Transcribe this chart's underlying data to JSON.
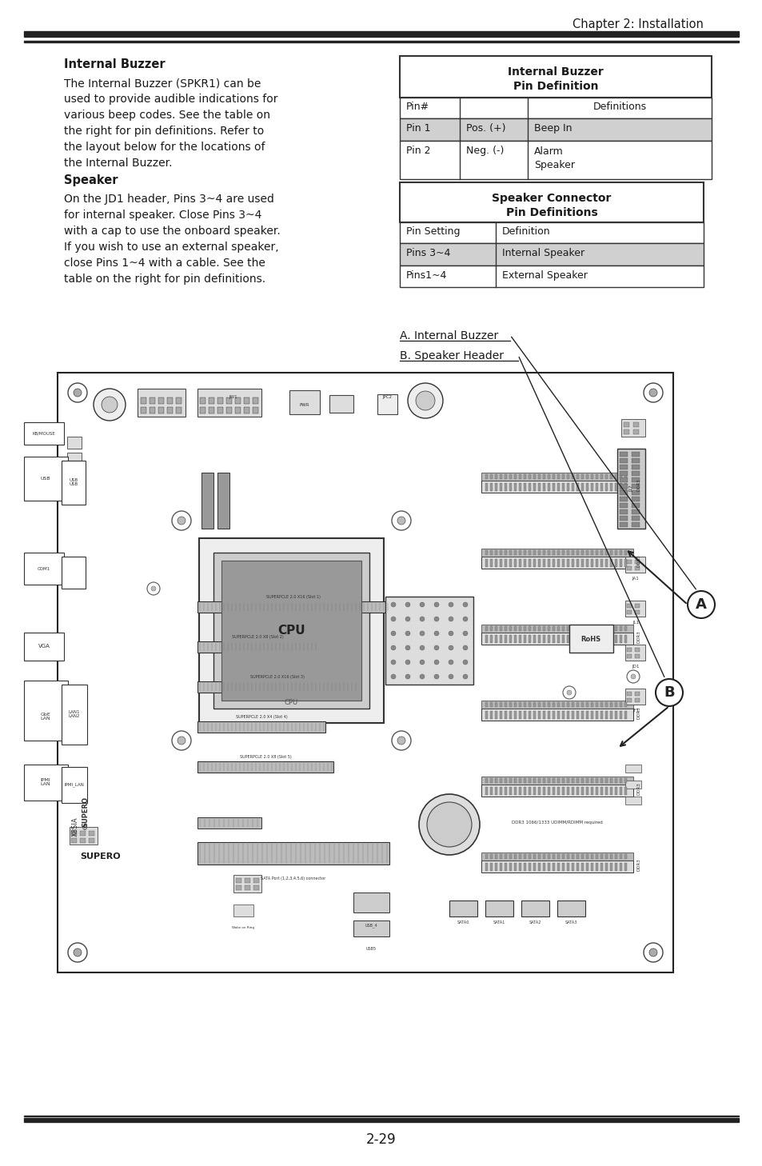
{
  "page_title": "Chapter 2: Installation",
  "page_number": "2-29",
  "section1_title": "Internal Buzzer",
  "section1_text_lines": [
    "The Internal Buzzer (SPKR1) can be",
    "used to provide audible indications for",
    "various beep codes. See the table on",
    "the right for pin definitions. Refer to",
    "the layout below for the locations of",
    "the Internal Buzzer."
  ],
  "table1_title1": "Internal Buzzer",
  "table1_title2": "Pin Definition",
  "table1_col_header": [
    "Pin#",
    "",
    "Definitions"
  ],
  "table1_rows": [
    [
      "Pin 1",
      "Pos. (+)",
      "Beep In"
    ],
    [
      "Pin 2",
      "Neg. (-)",
      "Alarm\nSpeaker"
    ]
  ],
  "section2_title": "Speaker",
  "section2_text_lines": [
    "On the JD1 header, Pins 3~4 are used",
    "for internal speaker. Close Pins 3~4",
    "with a cap to use the onboard speaker.",
    "If you wish to use an external speaker,",
    "close Pins 1~4 with a cable. See the",
    "table on the right for pin definitions."
  ],
  "table2_title1": "Speaker Connector",
  "table2_title2": "Pin Definitions",
  "table2_col_header": [
    "Pin Setting",
    "Definition"
  ],
  "table2_rows": [
    [
      "Pins 3~4",
      "Internal Speaker"
    ],
    [
      "Pins1~4",
      "External Speaker"
    ]
  ],
  "label_a": "A. Internal Buzzer",
  "label_b": "B. Speaker Header",
  "bg_color": "#ffffff",
  "text_color": "#1a1a1a",
  "header_bar_color": "#222222",
  "table_shade_color": "#d0d0d0",
  "table_border_color": "#333333",
  "board_color": "#ffffff",
  "board_border": "#333333"
}
